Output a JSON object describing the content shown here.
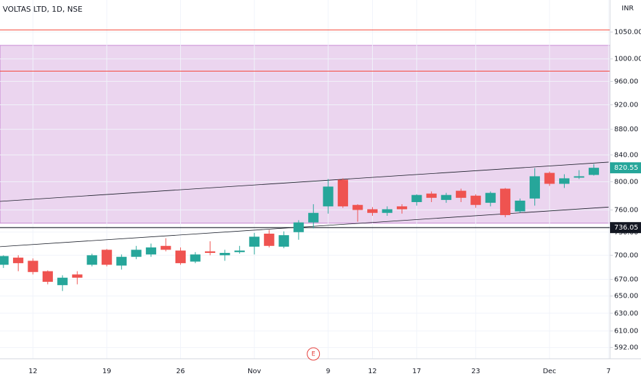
{
  "chart_data": {
    "type": "candlestick",
    "title": "VOLTAS LTD, 1D, NSE",
    "currency": "INR",
    "log_scale": true,
    "grid": true,
    "up_color": "#26a69a",
    "down_color": "#ef5350",
    "categories": [
      null,
      null,
      "12",
      null,
      null,
      null,
      null,
      "19",
      null,
      null,
      null,
      null,
      "26",
      null,
      null,
      null,
      null,
      "Nov",
      null,
      null,
      null,
      null,
      "9",
      null,
      null,
      "12",
      null,
      null,
      "17",
      null,
      null,
      null,
      "23",
      null,
      null,
      null,
      null,
      "Dec",
      null,
      null,
      null,
      "7"
    ],
    "open": [
      688,
      697,
      693,
      680,
      663,
      676,
      688,
      707,
      687,
      698,
      701,
      712,
      706,
      692,
      705,
      700,
      704,
      711,
      728,
      711,
      730,
      743,
      765,
      803,
      767,
      761,
      756,
      765,
      771,
      783,
      774,
      787,
      780,
      770,
      790,
      758,
      776,
      813,
      797,
      806,
      810,
      null
    ],
    "high": [
      700,
      700,
      696,
      681,
      675,
      680,
      702,
      708,
      701,
      712,
      715,
      722,
      710,
      704,
      718,
      707,
      712,
      729,
      733,
      731,
      746,
      768,
      804,
      805,
      768,
      764,
      765,
      768,
      782,
      786,
      784,
      790,
      782,
      786,
      791,
      776,
      820,
      815,
      811,
      817,
      826,
      null
    ],
    "low": [
      684,
      680,
      676,
      664,
      656,
      664,
      686,
      686,
      682,
      695,
      698,
      705,
      688,
      690,
      700,
      693,
      702,
      701,
      710,
      709,
      720,
      735,
      755,
      763,
      744,
      752,
      752,
      755,
      766,
      771,
      770,
      771,
      763,
      765,
      750,
      756,
      766,
      794,
      791,
      804,
      809,
      null
    ],
    "close": [
      699,
      690,
      679,
      667,
      672,
      672,
      700,
      688,
      698,
      707,
      710,
      707,
      690,
      701,
      703,
      703,
      706,
      724,
      712,
      726,
      743,
      756,
      793,
      765,
      760,
      756,
      761,
      761,
      781,
      777,
      781,
      777,
      767,
      784,
      753,
      773,
      808,
      797,
      805,
      808,
      820.55,
      null
    ],
    "ylim": [
      580,
      1113
    ],
    "yticks": [
      {
        "value": 592,
        "label": "592.00"
      },
      {
        "value": 610,
        "label": "610.00"
      },
      {
        "value": 630,
        "label": "630.00"
      },
      {
        "value": 650,
        "label": "650.00"
      },
      {
        "value": 670,
        "label": "670.00"
      },
      {
        "value": 700,
        "label": "700.00"
      },
      {
        "value": 730,
        "label": "730.00"
      },
      {
        "value": 760,
        "label": "760.00"
      },
      {
        "value": 800,
        "label": "800.00"
      },
      {
        "value": 840,
        "label": "840.00"
      },
      {
        "value": 880,
        "label": "880.00"
      },
      {
        "value": 920,
        "label": "920.00"
      },
      {
        "value": 960,
        "label": "960.00"
      },
      {
        "value": 1000,
        "label": "1000.00"
      },
      {
        "value": 1050,
        "label": "1050.00"
      }
    ],
    "zone": {
      "low": 742,
      "high": 1025,
      "color": "#e1bee7"
    },
    "red_lines": [
      1054,
      978
    ],
    "support_line": {
      "value": 736.05,
      "label": "736.05"
    },
    "trendlines": [
      {
        "x": [
          -0.23,
          41
        ],
        "y": [
          772,
          829
        ]
      },
      {
        "x": [
          -0.23,
          41
        ],
        "y": [
          711,
          764
        ]
      }
    ],
    "event_marker": {
      "x": 21,
      "label": "E"
    }
  }
}
